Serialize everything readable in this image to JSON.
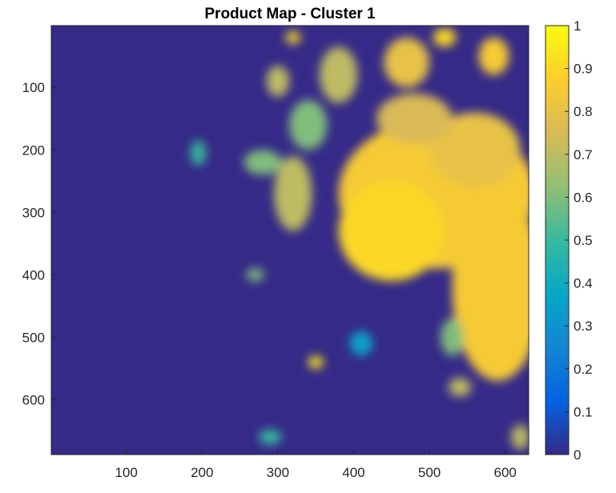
{
  "chart_data": {
    "type": "heatmap",
    "title": "Product Map - Cluster 1",
    "xlabel": "",
    "ylabel": "",
    "xlim": [
      1,
      631
    ],
    "ylim": [
      1,
      688
    ],
    "y_reversed": true,
    "x_ticks": [
      100,
      200,
      300,
      400,
      500,
      600
    ],
    "x_tick_labels": [
      "100",
      "200",
      "300",
      "400",
      "500",
      "600"
    ],
    "y_ticks": [
      100,
      200,
      300,
      400,
      500,
      600
    ],
    "y_tick_labels": [
      "100",
      "200",
      "300",
      "400",
      "500",
      "600"
    ],
    "colorbar": {
      "colormap": "parula",
      "range": [
        0,
        1
      ],
      "ticks": [
        0,
        0.1,
        0.2,
        0.3,
        0.4,
        0.5,
        0.6,
        0.7,
        0.8,
        0.9,
        1
      ],
      "tick_labels": [
        "0",
        "0.1",
        "0.2",
        "0.3",
        "0.4",
        "0.5",
        "0.6",
        "0.7",
        "0.8",
        "0.9",
        "1"
      ],
      "colors": [
        "#352a87",
        "#0363e1",
        "#1485d4",
        "#06a7c6",
        "#38b99e",
        "#92bf73",
        "#d9ba56",
        "#fcce2e",
        "#f9fb0e"
      ]
    },
    "grid": false,
    "approx_values_description_free": true,
    "blobs": [
      {
        "cx": 510,
        "cy": 270,
        "rx": 130,
        "ry": 120,
        "value": 0.85
      },
      {
        "cx": 450,
        "cy": 330,
        "rx": 70,
        "ry": 80,
        "value": 0.9
      },
      {
        "cx": 590,
        "cy": 420,
        "rx": 60,
        "ry": 150,
        "value": 0.85
      },
      {
        "cx": 560,
        "cy": 200,
        "rx": 60,
        "ry": 60,
        "value": 0.8
      },
      {
        "cx": 480,
        "cy": 150,
        "rx": 50,
        "ry": 40,
        "value": 0.75
      },
      {
        "cx": 470,
        "cy": 60,
        "rx": 30,
        "ry": 40,
        "value": 0.8
      },
      {
        "cx": 380,
        "cy": 80,
        "rx": 25,
        "ry": 45,
        "value": 0.7
      },
      {
        "cx": 340,
        "cy": 160,
        "rx": 25,
        "ry": 40,
        "value": 0.6
      },
      {
        "cx": 320,
        "cy": 270,
        "rx": 25,
        "ry": 60,
        "value": 0.7
      },
      {
        "cx": 280,
        "cy": 220,
        "rx": 25,
        "ry": 20,
        "value": 0.6
      },
      {
        "cx": 300,
        "cy": 90,
        "rx": 15,
        "ry": 25,
        "value": 0.7
      },
      {
        "cx": 585,
        "cy": 50,
        "rx": 20,
        "ry": 30,
        "value": 0.85
      },
      {
        "cx": 520,
        "cy": 20,
        "rx": 15,
        "ry": 15,
        "value": 0.9
      },
      {
        "cx": 320,
        "cy": 20,
        "rx": 10,
        "ry": 10,
        "value": 0.9
      },
      {
        "cx": 350,
        "cy": 540,
        "rx": 10,
        "ry": 10,
        "value": 0.95
      },
      {
        "cx": 540,
        "cy": 580,
        "rx": 15,
        "ry": 15,
        "value": 0.7
      },
      {
        "cx": 195,
        "cy": 205,
        "rx": 10,
        "ry": 20,
        "value": 0.5
      },
      {
        "cx": 270,
        "cy": 400,
        "rx": 12,
        "ry": 10,
        "value": 0.6
      },
      {
        "cx": 530,
        "cy": 500,
        "rx": 15,
        "ry": 30,
        "value": 0.6
      },
      {
        "cx": 410,
        "cy": 510,
        "rx": 15,
        "ry": 20,
        "value": 0.35
      },
      {
        "cx": 290,
        "cy": 660,
        "rx": 15,
        "ry": 12,
        "value": 0.5
      },
      {
        "cx": 620,
        "cy": 660,
        "rx": 12,
        "ry": 20,
        "value": 0.7
      }
    ]
  }
}
